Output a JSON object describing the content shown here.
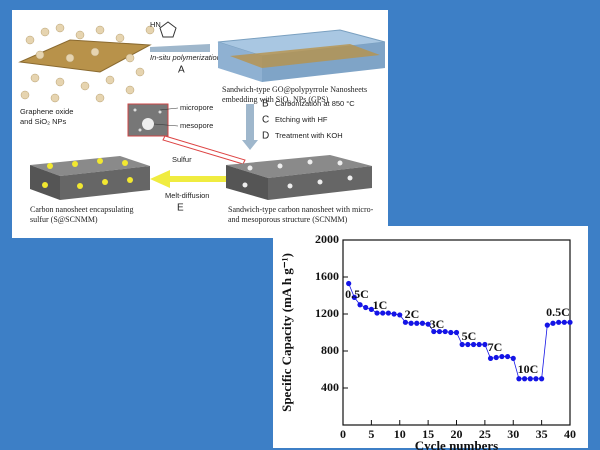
{
  "diagram": {
    "monomer": "HN",
    "step_a": {
      "text": "In-situ polymerization",
      "letter": "A"
    },
    "go_label": [
      "Graphene oxide",
      "and SiO₂ NPs"
    ],
    "gps_label": [
      "Sandwich-type GO@polypyrrole Nanosheets",
      "embedding with SiO₂ NPs (GPS)"
    ],
    "pores": [
      "micropore",
      "mesopore"
    ],
    "step_b": {
      "letter": "B",
      "text": "Carbonization at 850 °C"
    },
    "step_c": {
      "letter": "C",
      "text": "Etching with HF"
    },
    "step_d": {
      "letter": "D",
      "text": "Treatment with KOH"
    },
    "step_e": {
      "top": "Sulfur",
      "text": "Melt-diffusion",
      "letter": "E"
    },
    "scnm_label": [
      "Carbon nanosheet encapsulating",
      "sulfur  (S@SCNMM)"
    ],
    "scnmm_label": [
      "Sandwich-type carbon nanosheet with micro-",
      "and mesoporous structure (SCNMM)"
    ]
  },
  "chart_data": {
    "type": "line",
    "markers": true,
    "x_label": "Cycle numbers",
    "y_label": "Specific Capacity (mA h g⁻¹)",
    "x": [
      1,
      2,
      3,
      4,
      5,
      6,
      7,
      8,
      9,
      10,
      11,
      12,
      13,
      14,
      15,
      16,
      17,
      18,
      19,
      20,
      21,
      22,
      23,
      24,
      25,
      26,
      27,
      28,
      29,
      30,
      31,
      32,
      33,
      34,
      35,
      36,
      37,
      38,
      39,
      40
    ],
    "series": [
      {
        "color": "#1414e6",
        "values": [
          1530,
          1380,
          1300,
          1270,
          1250,
          1210,
          1210,
          1210,
          1200,
          1190,
          1110,
          1100,
          1100,
          1100,
          1090,
          1010,
          1010,
          1010,
          1000,
          1000,
          870,
          870,
          870,
          870,
          870,
          720,
          730,
          740,
          740,
          720,
          500,
          500,
          500,
          500,
          500,
          1080,
          1100,
          1110,
          1110,
          1110
        ]
      }
    ],
    "annotations": [
      "0.5C",
      "1C",
      "2C",
      "3C",
      "5C",
      "7C",
      "10C",
      "0.5C"
    ],
    "xlim": [
      0,
      40
    ],
    "xticks": [
      0,
      5,
      10,
      15,
      20,
      25,
      30,
      35,
      40
    ],
    "ylim": [
      0,
      2000
    ],
    "yticks": [
      400,
      800,
      1200,
      1600,
      2000
    ]
  }
}
